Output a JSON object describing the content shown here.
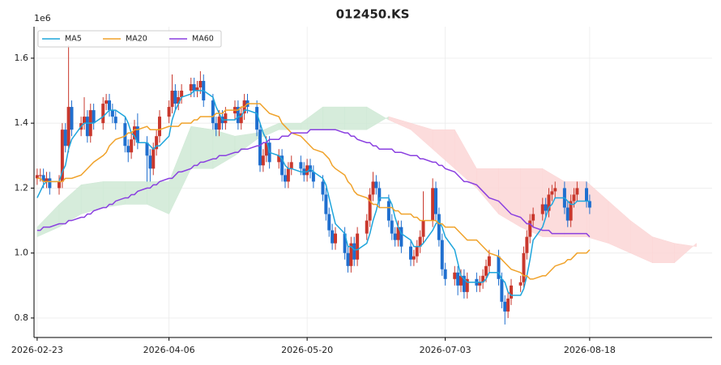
{
  "chart_data": {
    "type": "candlestick",
    "title": "012450.KS",
    "offset_label": "1e6",
    "xlim": [
      "2026-02-22",
      "2026-09-26"
    ],
    "ylim": [
      0.74,
      1.697
    ],
    "yticks": [
      0.8,
      {
        "value": 1,
        "label": "1.0"
      },
      1.2,
      1.4,
      1.6
    ],
    "xticks": [
      "2026-02-23",
      "2026-04-06",
      "2026-05-20",
      "2026-07-03",
      "2026-08-18"
    ],
    "grid": true,
    "legend": "upper left",
    "up_color": "#c9382d",
    "down_color": "#1f6fcf",
    "x": [
      "2026-02-23",
      "2026-02-24",
      "2026-02-25",
      "2026-02-26",
      "2026-02-27",
      "2026-03-02",
      "2026-03-03",
      "2026-03-04",
      "2026-03-05",
      "2026-03-06",
      "2026-03-09",
      "2026-03-10",
      "2026-03-11",
      "2026-03-12",
      "2026-03-13",
      "2026-03-16",
      "2026-03-17",
      "2026-03-18",
      "2026-03-19",
      "2026-03-20",
      "2026-03-23",
      "2026-03-24",
      "2026-03-25",
      "2026-03-26",
      "2026-03-27",
      "2026-03-30",
      "2026-03-31",
      "2026-04-01",
      "2026-04-02",
      "2026-04-03",
      "2026-04-06",
      "2026-04-07",
      "2026-04-08",
      "2026-04-09",
      "2026-04-10",
      "2026-04-13",
      "2026-04-14",
      "2026-04-15",
      "2026-04-16",
      "2026-04-17",
      "2026-04-20",
      "2026-04-21",
      "2026-04-22",
      "2026-04-23",
      "2026-04-24",
      "2026-04-27",
      "2026-04-28",
      "2026-04-29",
      "2026-04-30",
      "2026-05-01",
      "2026-05-04",
      "2026-05-05",
      "2026-05-06",
      "2026-05-07",
      "2026-05-08",
      "2026-05-11",
      "2026-05-12",
      "2026-05-13",
      "2026-05-14",
      "2026-05-15",
      "2026-05-18",
      "2026-05-19",
      "2026-05-20",
      "2026-05-21",
      "2026-05-22",
      "2026-05-25",
      "2026-05-26",
      "2026-05-27",
      "2026-05-28",
      "2026-05-29",
      "2026-06-01",
      "2026-06-02",
      "2026-06-03",
      "2026-06-04",
      "2026-06-05",
      "2026-06-08",
      "2026-06-09",
      "2026-06-10",
      "2026-06-11",
      "2026-06-12",
      "2026-06-15",
      "2026-06-16",
      "2026-06-17",
      "2026-06-18",
      "2026-06-19",
      "2026-06-22",
      "2026-06-23",
      "2026-06-24",
      "2026-06-25",
      "2026-06-26",
      "2026-06-29",
      "2026-06-30",
      "2026-07-01",
      "2026-07-02",
      "2026-07-03",
      "2026-07-06",
      "2026-07-07",
      "2026-07-08",
      "2026-07-09",
      "2026-07-10",
      "2026-07-13",
      "2026-07-14",
      "2026-07-15",
      "2026-07-16",
      "2026-07-17",
      "2026-07-20",
      "2026-07-21",
      "2026-07-22",
      "2026-07-23",
      "2026-07-24",
      "2026-07-27",
      "2026-07-28",
      "2026-07-29",
      "2026-07-30",
      "2026-07-31",
      "2026-08-03",
      "2026-08-04",
      "2026-08-05",
      "2026-08-06",
      "2026-08-07",
      "2026-08-10",
      "2026-08-11",
      "2026-08-12",
      "2026-08-13",
      "2026-08-14",
      "2026-08-17",
      "2026-08-18"
    ],
    "open": [
      1.23,
      1.24,
      1.24,
      1.22,
      1.23,
      1.2,
      1.22,
      1.38,
      1.33,
      1.45,
      1.38,
      1.4,
      1.42,
      1.36,
      1.44,
      1.4,
      1.46,
      1.47,
      1.44,
      1.42,
      1.4,
      1.33,
      1.31,
      1.35,
      1.39,
      1.34,
      1.3,
      1.26,
      1.32,
      1.36,
      1.42,
      1.45,
      1.5,
      1.46,
      1.48,
      1.5,
      1.52,
      1.5,
      1.51,
      1.53,
      1.47,
      1.4,
      1.38,
      1.42,
      1.4,
      1.43,
      1.45,
      1.4,
      1.43,
      1.47,
      1.45,
      1.38,
      1.27,
      1.3,
      1.34,
      1.28,
      1.3,
      1.24,
      1.22,
      1.26,
      1.28,
      1.26,
      1.24,
      1.27,
      1.25,
      1.22,
      1.18,
      1.12,
      1.07,
      1.03,
      1.06,
      1.0,
      0.96,
      1.03,
      0.98,
      1.06,
      1.1,
      1.18,
      1.22,
      1.2,
      1.16,
      1.1,
      1.06,
      1.04,
      1.08,
      1.02,
      0.98,
      0.99,
      1.02,
      1.05,
      1.1,
      1.2,
      1.12,
      1.04,
      0.95,
      0.92,
      0.94,
      0.9,
      0.93,
      0.88,
      0.92,
      0.9,
      0.91,
      0.93,
      0.96,
      0.99,
      0.92,
      0.85,
      0.82,
      0.86,
      0.9,
      0.91,
      1.0,
      1.05,
      1.1,
      1.12,
      1.15,
      1.13,
      1.18,
      1.19,
      1.2,
      1.14,
      1.1,
      1.16,
      1.18,
      1.2,
      1.16
    ],
    "high": [
      1.26,
      1.26,
      1.26,
      1.25,
      1.25,
      1.24,
      1.4,
      1.4,
      1.64,
      1.47,
      1.42,
      1.48,
      1.44,
      1.46,
      1.46,
      1.48,
      1.49,
      1.49,
      1.46,
      1.44,
      1.42,
      1.35,
      1.37,
      1.41,
      1.43,
      1.36,
      1.32,
      1.34,
      1.38,
      1.44,
      1.47,
      1.55,
      1.52,
      1.5,
      1.52,
      1.54,
      1.54,
      1.53,
      1.56,
      1.55,
      1.49,
      1.42,
      1.44,
      1.44,
      1.45,
      1.47,
      1.47,
      1.45,
      1.49,
      1.49,
      1.47,
      1.4,
      1.32,
      1.36,
      1.36,
      1.32,
      1.32,
      1.26,
      1.28,
      1.3,
      1.3,
      1.28,
      1.29,
      1.29,
      1.27,
      1.24,
      1.2,
      1.14,
      1.09,
      1.08,
      1.08,
      1.02,
      1.05,
      1.05,
      1.08,
      1.12,
      1.2,
      1.25,
      1.24,
      1.22,
      1.18,
      1.12,
      1.08,
      1.1,
      1.1,
      1.04,
      1.01,
      1.04,
      1.07,
      1.19,
      1.23,
      1.22,
      1.14,
      1.06,
      0.97,
      0.96,
      0.96,
      0.95,
      0.95,
      0.94,
      0.94,
      0.93,
      0.95,
      0.98,
      1.01,
      1.01,
      0.94,
      0.87,
      0.88,
      0.92,
      0.93,
      1.02,
      1.07,
      1.12,
      1.14,
      1.17,
      1.17,
      1.2,
      1.21,
      1.22,
      1.22,
      1.16,
      1.18,
      1.2,
      1.22,
      1.22,
      1.18
    ],
    "low": [
      1.21,
      1.22,
      1.2,
      1.2,
      1.18,
      1.18,
      1.2,
      1.31,
      1.31,
      1.36,
      1.36,
      1.38,
      1.34,
      1.34,
      1.38,
      1.38,
      1.44,
      1.42,
      1.4,
      1.38,
      1.31,
      1.28,
      1.29,
      1.33,
      1.32,
      1.22,
      1.22,
      1.24,
      1.3,
      1.34,
      1.4,
      1.43,
      1.44,
      1.44,
      1.46,
      1.48,
      1.48,
      1.48,
      1.49,
      1.45,
      1.38,
      1.36,
      1.36,
      1.38,
      1.38,
      1.41,
      1.38,
      1.38,
      1.41,
      1.43,
      1.36,
      1.25,
      1.25,
      1.28,
      1.26,
      1.26,
      1.22,
      1.2,
      1.2,
      1.24,
      1.24,
      1.22,
      1.22,
      1.23,
      1.2,
      1.16,
      1.1,
      1.05,
      1.01,
      1.01,
      0.98,
      0.94,
      0.94,
      0.96,
      0.96,
      1.04,
      1.08,
      1.16,
      1.18,
      1.14,
      1.08,
      1.04,
      1.02,
      1.02,
      1.0,
      0.96,
      0.96,
      0.97,
      1.0,
      1.03,
      1.08,
      1.1,
      1.02,
      0.93,
      0.9,
      0.9,
      0.87,
      0.88,
      0.86,
      0.86,
      0.88,
      0.88,
      0.89,
      0.91,
      0.94,
      0.9,
      0.83,
      0.78,
      0.8,
      0.84,
      0.88,
      0.89,
      0.98,
      1.03,
      1.08,
      1.1,
      1.11,
      1.11,
      1.16,
      1.17,
      1.12,
      1.08,
      1.08,
      1.14,
      1.16,
      1.14,
      1.12
    ],
    "close": [
      1.24,
      1.24,
      1.22,
      1.23,
      1.2,
      1.22,
      1.38,
      1.33,
      1.45,
      1.38,
      1.4,
      1.42,
      1.36,
      1.44,
      1.4,
      1.46,
      1.47,
      1.44,
      1.42,
      1.4,
      1.33,
      1.31,
      1.35,
      1.39,
      1.34,
      1.3,
      1.26,
      1.32,
      1.36,
      1.42,
      1.45,
      1.5,
      1.46,
      1.48,
      1.5,
      1.52,
      1.5,
      1.51,
      1.53,
      1.47,
      1.4,
      1.38,
      1.42,
      1.4,
      1.43,
      1.45,
      1.4,
      1.43,
      1.47,
      1.45,
      1.38,
      1.27,
      1.3,
      1.34,
      1.28,
      1.3,
      1.24,
      1.22,
      1.26,
      1.28,
      1.26,
      1.24,
      1.27,
      1.25,
      1.22,
      1.18,
      1.12,
      1.07,
      1.03,
      1.06,
      1.0,
      0.96,
      1.03,
      0.98,
      1.06,
      1.1,
      1.18,
      1.22,
      1.2,
      1.16,
      1.1,
      1.06,
      1.04,
      1.08,
      1.02,
      0.98,
      0.99,
      1.02,
      1.05,
      1.1,
      1.2,
      1.12,
      1.04,
      0.95,
      0.92,
      0.94,
      0.9,
      0.93,
      0.88,
      0.92,
      0.9,
      0.91,
      0.93,
      0.96,
      0.99,
      0.92,
      0.85,
      0.82,
      0.86,
      0.9,
      0.91,
      1.0,
      1.05,
      1.1,
      1.12,
      1.15,
      1.13,
      1.18,
      1.19,
      1.2,
      1.14,
      1.1,
      1.16,
      1.18,
      1.2,
      1.16,
      1.14
    ],
    "series": [
      {
        "name": "MA5",
        "color": "#1ea5dc",
        "values": [
          1.17,
          1.19,
          1.21,
          1.22,
          1.22,
          1.22,
          1.25,
          1.27,
          1.32,
          1.35,
          1.39,
          1.4,
          1.4,
          1.4,
          1.4,
          1.42,
          1.43,
          1.44,
          1.44,
          1.44,
          1.42,
          1.4,
          1.37,
          1.36,
          1.34,
          1.34,
          1.33,
          1.32,
          1.33,
          1.33,
          1.36,
          1.41,
          1.44,
          1.46,
          1.48,
          1.49,
          1.5,
          1.5,
          1.5,
          1.5,
          1.48,
          1.45,
          1.43,
          1.41,
          1.41,
          1.41,
          1.42,
          1.42,
          1.44,
          1.44,
          1.43,
          1.4,
          1.37,
          1.35,
          1.31,
          1.3,
          1.29,
          1.27,
          1.26,
          1.26,
          1.25,
          1.25,
          1.25,
          1.26,
          1.25,
          1.23,
          1.21,
          1.17,
          1.13,
          1.09,
          1.06,
          1.02,
          1.02,
          1.01,
          1.01,
          1.03,
          1.06,
          1.1,
          1.13,
          1.17,
          1.17,
          1.15,
          1.11,
          1.08,
          1.06,
          1.04,
          1.02,
          1.02,
          1.02,
          1.03,
          1.07,
          1.09,
          1.1,
          1.08,
          1.05,
          1.01,
          0.97,
          0.93,
          0.92,
          0.91,
          0.91,
          0.91,
          0.91,
          0.92,
          0.94,
          0.94,
          0.92,
          0.91,
          0.88,
          0.87,
          0.87,
          0.89,
          0.93,
          0.98,
          1.04,
          1.08,
          1.11,
          1.14,
          1.15,
          1.17,
          1.17,
          1.16,
          1.15,
          1.15,
          1.16,
          1.16,
          1.16
        ]
      },
      {
        "name": "MA20",
        "color": "#f0a22a",
        "values": [
          1.23,
          1.23,
          1.22,
          1.22,
          1.22,
          1.22,
          1.22,
          1.23,
          1.23,
          1.23,
          1.24,
          1.25,
          1.26,
          1.27,
          1.28,
          1.3,
          1.31,
          1.33,
          1.34,
          1.35,
          1.36,
          1.37,
          1.37,
          1.38,
          1.38,
          1.39,
          1.38,
          1.38,
          1.38,
          1.38,
          1.39,
          1.39,
          1.39,
          1.39,
          1.4,
          1.4,
          1.41,
          1.41,
          1.42,
          1.42,
          1.42,
          1.43,
          1.43,
          1.43,
          1.44,
          1.44,
          1.44,
          1.45,
          1.45,
          1.46,
          1.46,
          1.46,
          1.45,
          1.44,
          1.43,
          1.42,
          1.4,
          1.39,
          1.38,
          1.37,
          1.36,
          1.35,
          1.34,
          1.33,
          1.32,
          1.31,
          1.3,
          1.29,
          1.27,
          1.26,
          1.24,
          1.22,
          1.21,
          1.19,
          1.18,
          1.17,
          1.16,
          1.15,
          1.15,
          1.14,
          1.14,
          1.14,
          1.13,
          1.13,
          1.12,
          1.12,
          1.11,
          1.11,
          1.1,
          1.1,
          1.1,
          1.1,
          1.09,
          1.09,
          1.08,
          1.08,
          1.07,
          1.06,
          1.05,
          1.04,
          1.04,
          1.03,
          1.02,
          1.01,
          1.0,
          0.99,
          0.98,
          0.97,
          0.96,
          0.95,
          0.94,
          0.93,
          0.93,
          0.92,
          0.92,
          0.93,
          0.93,
          0.94,
          0.95,
          0.96,
          0.97,
          0.98,
          0.98,
          0.99,
          1.0,
          1.0,
          1.01
        ]
      },
      {
        "name": "MA60",
        "color": "#8a3fe0",
        "values": [
          1.07,
          1.07,
          1.08,
          1.08,
          1.08,
          1.09,
          1.09,
          1.09,
          1.1,
          1.1,
          1.11,
          1.11,
          1.12,
          1.12,
          1.13,
          1.14,
          1.14,
          1.15,
          1.15,
          1.16,
          1.17,
          1.17,
          1.18,
          1.18,
          1.19,
          1.2,
          1.2,
          1.21,
          1.21,
          1.22,
          1.23,
          1.23,
          1.24,
          1.25,
          1.25,
          1.26,
          1.27,
          1.27,
          1.28,
          1.28,
          1.29,
          1.29,
          1.3,
          1.3,
          1.3,
          1.31,
          1.31,
          1.32,
          1.32,
          1.32,
          1.33,
          1.33,
          1.34,
          1.34,
          1.35,
          1.35,
          1.36,
          1.36,
          1.36,
          1.37,
          1.37,
          1.37,
          1.37,
          1.38,
          1.38,
          1.38,
          1.38,
          1.38,
          1.38,
          1.38,
          1.37,
          1.37,
          1.36,
          1.36,
          1.35,
          1.34,
          1.34,
          1.33,
          1.33,
          1.32,
          1.32,
          1.32,
          1.31,
          1.31,
          1.31,
          1.3,
          1.3,
          1.3,
          1.29,
          1.29,
          1.28,
          1.28,
          1.27,
          1.27,
          1.26,
          1.25,
          1.24,
          1.23,
          1.22,
          1.22,
          1.21,
          1.2,
          1.19,
          1.18,
          1.17,
          1.16,
          1.15,
          1.14,
          1.13,
          1.12,
          1.11,
          1.1,
          1.09,
          1.09,
          1.08,
          1.07,
          1.07,
          1.07,
          1.06,
          1.06,
          1.06,
          1.06,
          1.06,
          1.06,
          1.06,
          1.06,
          1.05
        ]
      }
    ],
    "cloud": {
      "up_color": "#cfe9d5",
      "down_color": "#fbd6d6",
      "x": [
        "2026-02-23",
        "2026-03-02",
        "2026-03-09",
        "2026-03-16",
        "2026-03-23",
        "2026-03-30",
        "2026-04-06",
        "2026-04-13",
        "2026-04-20",
        "2026-04-27",
        "2026-05-04",
        "2026-05-11",
        "2026-05-18",
        "2026-05-25",
        "2026-06-01",
        "2026-06-08",
        "2026-06-15",
        "2026-06-22",
        "2026-06-29",
        "2026-07-06",
        "2026-07-13",
        "2026-07-20",
        "2026-07-27",
        "2026-08-03",
        "2026-08-10",
        "2026-08-17",
        "2026-08-24",
        "2026-08-31",
        "2026-09-07",
        "2026-09-14",
        "2026-09-21"
      ],
      "span_a": [
        1.08,
        1.15,
        1.21,
        1.22,
        1.22,
        1.22,
        1.22,
        1.39,
        1.38,
        1.36,
        1.37,
        1.4,
        1.4,
        1.45,
        1.45,
        1.45,
        1.41,
        1.38,
        1.32,
        1.26,
        1.2,
        1.12,
        1.08,
        1.05,
        1.05,
        1.05,
        1.03,
        1.0,
        0.97,
        0.97,
        1.03
      ],
      "span_b": [
        1.05,
        1.08,
        1.12,
        1.14,
        1.15,
        1.15,
        1.12,
        1.26,
        1.26,
        1.3,
        1.35,
        1.38,
        1.38,
        1.38,
        1.38,
        1.38,
        1.42,
        1.4,
        1.38,
        1.38,
        1.26,
        1.26,
        1.26,
        1.26,
        1.22,
        1.22,
        1.16,
        1.1,
        1.05,
        1.03,
        1.02
      ]
    }
  }
}
